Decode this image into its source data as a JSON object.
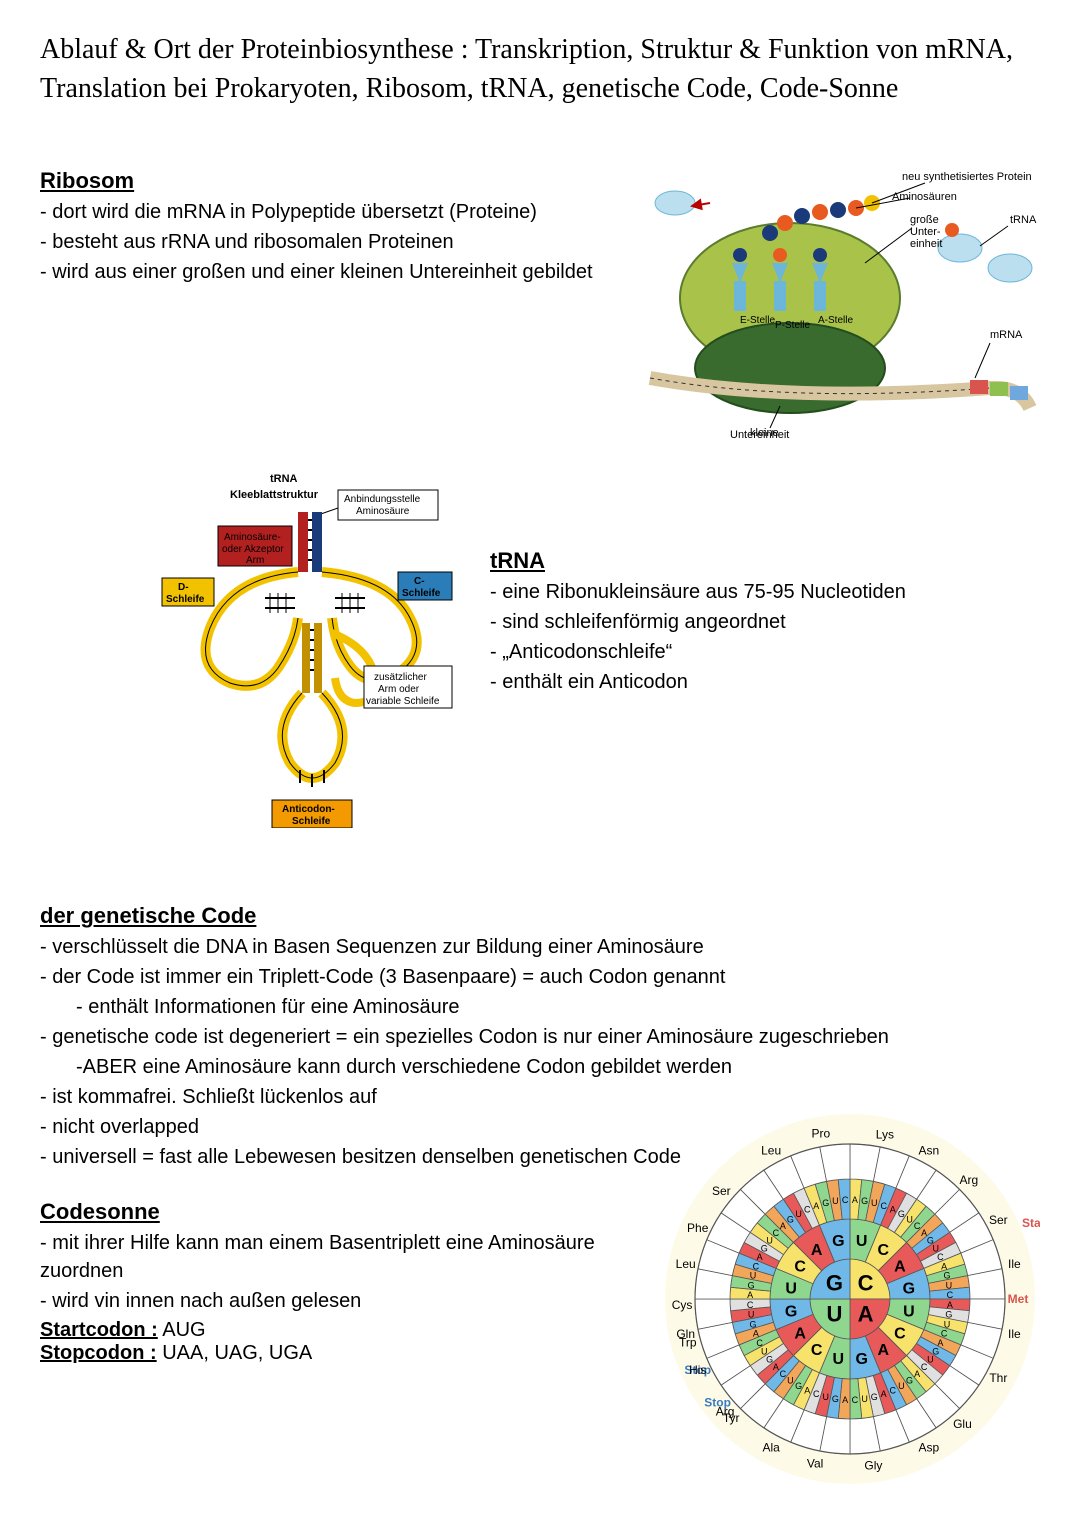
{
  "title": "Ablauf & Ort der Proteinbiosynthese : Transkription, Struktur & Funktion von mRNA, Translation bei Prokaryoten, Ribosom, tRNA, genetische Code, Code-Sonne",
  "ribosom": {
    "heading": "Ribosom",
    "bullets": [
      "- dort wird die mRNA in Polypeptide übersetzt (Proteine)",
      "- besteht aus rRNA und ribosomalen Proteinen",
      "- wird aus einer großen und einer kleinen Untereinheit gebildet"
    ]
  },
  "ribo_diagram": {
    "labels": {
      "protein": "neu synthetisiertes Protein",
      "aminos": "Aminosäuren",
      "trna": "tRNA",
      "big": "große Unter-einheit",
      "mrna": "mRNA",
      "small": "kleine Untereinheit",
      "eSite": "E-Stelle",
      "pSite": "P-Stelle",
      "aSite": "A-Stelle"
    },
    "colors": {
      "large_subunit": "#a9c24a",
      "large_subunit_dark": "#5a7c2c",
      "small_subunit": "#3a6b2e",
      "trna_body": "#6cb6d9",
      "trna_light": "#bcdff0",
      "aa_orange": "#e85a1f",
      "aa_blue": "#1a3a7a",
      "mrna_band": "#d8c6a0",
      "mrna_codon1": "#d9534f",
      "mrna_codon2": "#8fbf4f",
      "mrna_codon3": "#6fa8dc",
      "bg": "#ffffff"
    }
  },
  "trna_diagram": {
    "title1": "tRNA",
    "title2": "Kleeblattstruktur",
    "labels": {
      "anbindung": "Anbindungsstelle Aminosäure",
      "akzeptor": "Aminosäure- oder Akzeptor Arm",
      "d": "D-Schleife",
      "c": "C-Schleife",
      "variable": "zusätzlicher Arm oder variable Schleife",
      "anticodon": "Anticodon-Schleife"
    },
    "colors": {
      "backbone": "#f2c200",
      "outline": "#000000",
      "d_box": "#f2c200",
      "c_box": "#2a7db8",
      "akz_box": "#b32020",
      "anticodon_box": "#f29a00",
      "stem_red": "#b32020",
      "stem_blue": "#2a7db8",
      "stem_gold": "#c29000",
      "rungs": "#000000"
    }
  },
  "trna_text": {
    "heading": "tRNA",
    "bullets": [
      "- eine Ribonukleinsäure aus 75-95 Nucleotiden",
      "- sind schleifenförmig angeordnet",
      "- „Anticodonschleife“",
      "- enthält ein Anticodon"
    ]
  },
  "genetic_code": {
    "heading": "der genetische Code",
    "bullets": [
      "- verschlüsselt die DNA in Basen Sequenzen zur Bildung einer Aminosäure",
      "- der Code ist immer ein Triplett-Code (3 Basenpaare) = auch Codon genannt",
      "     - enthält Informationen für eine Aminosäure",
      "- genetische code ist degeneriert = ein spezielles Codon is nur einer Aminosäure zugeschrieben",
      "     -ABER eine Aminosäure kann durch verschiedene Codon gebildet werden",
      "- ist kommafrei. Schließt lückenlos auf",
      "- nicht overlapped",
      "- universell = fast alle Lebewesen besitzen denselben genetischen Code"
    ]
  },
  "codesonne": {
    "heading": "Codesonne",
    "bullets": [
      "- mit ihrer Hilfe kann man einem Basentriplett eine Aminosäure zuordnen",
      "- wird vin innen nach außen gelesen"
    ],
    "start_label": "Startcodon :",
    "start_value": "AUG",
    "stop_label": "Stopcodon :",
    "stop_value": "UAA, UAG, UGA"
  },
  "code_sun": {
    "center_letters": [
      "C",
      "A",
      "U",
      "G"
    ],
    "ring2_letters": [
      "U",
      "C",
      "A",
      "G",
      "U",
      "C",
      "A",
      "G",
      "U",
      "C",
      "A",
      "G",
      "U",
      "C",
      "A",
      "G"
    ],
    "ring3_letters": [
      "A",
      "G",
      "U",
      "C",
      "A",
      "G",
      "U",
      "C",
      "A",
      "G",
      "U",
      "C",
      "A",
      "G",
      "U",
      "C",
      "A",
      "G",
      "U",
      "C",
      "A",
      "G",
      "U",
      "C",
      "A",
      "G",
      "U",
      "C",
      "A",
      "G",
      "U",
      "C",
      "A",
      "G",
      "U",
      "C",
      "A",
      "G",
      "U",
      "C",
      "A",
      "G",
      "U",
      "C",
      "A",
      "G",
      "U",
      "C",
      "A",
      "G",
      "U",
      "C",
      "A",
      "G",
      "U",
      "C",
      "A",
      "G",
      "U",
      "C",
      "A",
      "G",
      "U",
      "C"
    ],
    "amino": [
      "Pro",
      "Lys",
      "Asn",
      "Arg",
      "Ser",
      "Ile",
      "Met",
      "Ile",
      "Thr",
      "Glu",
      "Asp",
      "Gly",
      "Val",
      "Ala",
      "Tyr",
      "Stop",
      "Stop",
      "Trp",
      "Cys",
      "Leu",
      "Phe",
      "Ser",
      "Gln",
      "His",
      "Arg",
      "Leu",
      "Start"
    ],
    "colors": {
      "bg": "#fdfbe8",
      "ring_border": "#555555",
      "red": "#e85a5a",
      "green": "#8fd68f",
      "yellow": "#f7e36b",
      "blue": "#6fb8e8",
      "orange": "#f2a65a",
      "grey": "#e0e0e0",
      "center_fill_c": "#f7e36b",
      "center_fill_a": "#e85a5a",
      "center_fill_u": "#8fd68f",
      "center_fill_g": "#6fb8e8",
      "start_text": "#d9534f",
      "stop_text": "#3a7bbf"
    }
  }
}
